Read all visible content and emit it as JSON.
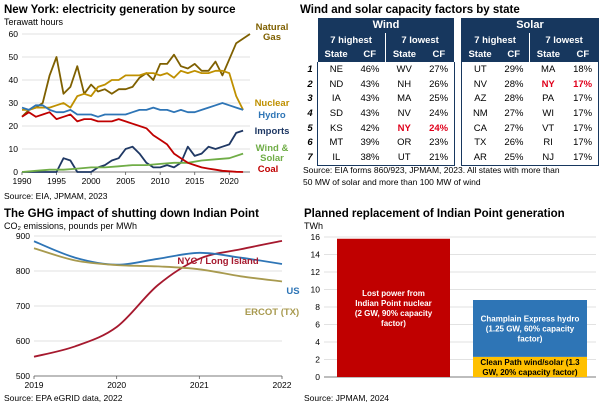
{
  "chart_data": [
    {
      "type": "line",
      "title": "New York: electricity generation by source",
      "ylabel": "Terawatt hours",
      "source": "Source: EIA, JPMAM, 2023",
      "xlim": [
        1990,
        2023
      ],
      "ylim": [
        0,
        60
      ],
      "xticks": [
        1990,
        1995,
        2000,
        2005,
        2010,
        2015,
        2020
      ],
      "yticks": [
        0,
        10,
        20,
        30,
        40,
        50,
        60
      ],
      "grid": true,
      "series": [
        {
          "name": "Natural Gas",
          "color": "#7f6000",
          "x": [
            1990,
            1991,
            1992,
            1993,
            1994,
            1995,
            1996,
            1997,
            1998,
            1999,
            2000,
            2001,
            2002,
            2003,
            2004,
            2005,
            2006,
            2007,
            2008,
            2009,
            2010,
            2011,
            2012,
            2013,
            2014,
            2015,
            2016,
            2017,
            2018,
            2019,
            2020,
            2021,
            2022,
            2023
          ],
          "y": [
            24,
            27,
            28,
            30,
            42,
            50,
            34,
            37,
            46,
            34,
            38,
            35,
            36,
            34,
            36,
            36,
            37,
            41,
            43,
            40,
            47,
            47,
            51,
            46,
            45,
            47,
            44,
            44,
            48,
            42,
            49,
            56,
            58,
            60
          ]
        },
        {
          "name": "Nuclear",
          "color": "#bf9000",
          "x": [
            1990,
            1991,
            1992,
            1993,
            1994,
            1995,
            1996,
            1997,
            1998,
            1999,
            2000,
            2001,
            2002,
            2003,
            2004,
            2005,
            2006,
            2007,
            2008,
            2009,
            2010,
            2011,
            2012,
            2013,
            2014,
            2015,
            2016,
            2017,
            2018,
            2019,
            2020,
            2021,
            2022
          ],
          "y": [
            27,
            27,
            28,
            28,
            28,
            29,
            30,
            28,
            33,
            34,
            33,
            37,
            38,
            40,
            40,
            42,
            42,
            42,
            43,
            43,
            42,
            43,
            41,
            44,
            43,
            44,
            43,
            43,
            44,
            44,
            43,
            33,
            27
          ]
        },
        {
          "name": "Hydro",
          "color": "#2e75b6",
          "x": [
            1990,
            1991,
            1992,
            1993,
            1994,
            1995,
            1996,
            1997,
            1998,
            1999,
            2000,
            2001,
            2002,
            2003,
            2004,
            2005,
            2006,
            2007,
            2008,
            2009,
            2010,
            2011,
            2012,
            2013,
            2014,
            2015,
            2016,
            2017,
            2018,
            2019,
            2020,
            2021,
            2022
          ],
          "y": [
            28,
            27,
            29,
            29,
            27,
            26,
            26,
            27,
            25,
            25,
            25,
            24,
            25,
            25,
            25,
            25,
            26,
            27,
            27,
            28,
            27,
            27,
            26,
            27,
            26,
            26,
            27,
            28,
            29,
            30,
            29,
            28,
            27
          ]
        },
        {
          "name": "Imports",
          "color": "#1f3864",
          "x": [
            1990,
            1991,
            1992,
            1993,
            1994,
            1995,
            1996,
            1997,
            1998,
            1999,
            2000,
            2001,
            2002,
            2003,
            2004,
            2005,
            2006,
            2007,
            2008,
            2009,
            2010,
            2011,
            2012,
            2013,
            2014,
            2015,
            2016,
            2017,
            2018,
            2019,
            2020,
            2021,
            2022
          ],
          "y": [
            0,
            0,
            0,
            0,
            0,
            0,
            6,
            5,
            0,
            0,
            0,
            2,
            3,
            5,
            6,
            10,
            11,
            8,
            4,
            2,
            2,
            3,
            2,
            4,
            11,
            7,
            8,
            11,
            10,
            11,
            12,
            17,
            18
          ]
        },
        {
          "name": "Wind & Solar",
          "color": "#70ad47",
          "x": [
            1990,
            1992,
            1994,
            1996,
            1998,
            2000,
            2002,
            2004,
            2006,
            2008,
            2010,
            2012,
            2014,
            2016,
            2018,
            2020,
            2022
          ],
          "y": [
            0,
            0.5,
            1,
            1,
            1.5,
            2,
            2,
            2.5,
            3,
            3,
            3.5,
            4,
            4,
            5,
            5.5,
            6,
            8
          ]
        },
        {
          "name": "Coal",
          "color": "#c00000",
          "x": [
            1990,
            1991,
            1992,
            1993,
            1994,
            1995,
            1996,
            1997,
            1998,
            1999,
            2000,
            2001,
            2002,
            2003,
            2004,
            2005,
            2006,
            2007,
            2008,
            2009,
            2010,
            2011,
            2012,
            2013,
            2014,
            2015,
            2016,
            2017,
            2018,
            2019,
            2020,
            2021,
            2022
          ],
          "y": [
            24,
            26,
            24,
            25,
            26,
            23,
            24,
            25,
            22,
            23,
            23,
            22,
            22,
            22,
            23,
            22,
            21,
            20,
            19,
            16,
            14,
            12,
            8,
            6,
            4,
            3,
            2,
            1.5,
            1,
            0.5,
            0.3,
            0.1,
            0
          ]
        }
      ]
    },
    {
      "type": "table",
      "title": "Wind and solar capacity factors by state",
      "groups": [
        "Wind",
        "Solar"
      ],
      "subgroups": [
        "7 highest",
        "7 lowest"
      ],
      "columns": [
        "State",
        "CF"
      ],
      "ranks": [
        "1",
        "2",
        "3",
        "4",
        "5",
        "6",
        "7"
      ],
      "rows": [
        [
          "NE",
          "46%",
          "WV",
          "27%",
          "UT",
          "29%",
          "MA",
          "18%"
        ],
        [
          "ND",
          "43%",
          "NH",
          "26%",
          "NV",
          "28%",
          "NY",
          "17%"
        ],
        [
          "IA",
          "43%",
          "MA",
          "25%",
          "AZ",
          "28%",
          "PA",
          "17%"
        ],
        [
          "SD",
          "43%",
          "NV",
          "24%",
          "NM",
          "27%",
          "WI",
          "17%"
        ],
        [
          "KS",
          "42%",
          "NY",
          "24%",
          "CA",
          "27%",
          "VT",
          "17%"
        ],
        [
          "MT",
          "39%",
          "OR",
          "23%",
          "TX",
          "26%",
          "RI",
          "17%"
        ],
        [
          "IL",
          "38%",
          "UT",
          "21%",
          "AR",
          "25%",
          "NJ",
          "17%"
        ]
      ],
      "highlight_color": "#e0001b",
      "source_lines": [
        "Source: EIA forms 860/923, JPMAM, 2023. All states with more than",
        "50 MW of solar and more than 100 MW of wind"
      ]
    },
    {
      "type": "line",
      "title": "The GHG impact of shutting down Indian Point",
      "ylabel": "CO₂ emissions, pounds per MWh",
      "source": "Source: EPA eGRID data, 2022",
      "xlim": [
        2019,
        2022
      ],
      "ylim": [
        500,
        900
      ],
      "xticks": [
        2019,
        2020,
        2021,
        2022
      ],
      "yticks": [
        500,
        600,
        700,
        800,
        900
      ],
      "grid": true,
      "series": [
        {
          "name": "NYC / Long Island",
          "color": "#a6192e",
          "x": [
            2019,
            2019.5,
            2020,
            2020.5,
            2021,
            2021.5,
            2022
          ],
          "y": [
            555,
            585,
            640,
            760,
            835,
            862,
            886
          ]
        },
        {
          "name": "US",
          "color": "#2e75b6",
          "x": [
            2019,
            2019.5,
            2020,
            2020.5,
            2021,
            2021.5,
            2022
          ],
          "y": [
            885,
            838,
            818,
            835,
            852,
            838,
            820
          ]
        },
        {
          "name": "ERCOT (TX)",
          "color": "#a89a4f",
          "x": [
            2019,
            2019.5,
            2020,
            2020.5,
            2021,
            2021.5,
            2022
          ],
          "y": [
            865,
            830,
            817,
            813,
            805,
            785,
            770
          ]
        }
      ]
    },
    {
      "type": "bar",
      "title": "Planned replacement of Indian Point generation",
      "ylabel": "TWh",
      "source": "Source: JPMAM, 2024",
      "ylim": [
        0,
        16
      ],
      "yticks": [
        0,
        2,
        4,
        6,
        8,
        10,
        12,
        14,
        16
      ],
      "grid": true,
      "bars": [
        {
          "label_lines": [
            "Lost power from",
            "Indian Point nuclear",
            "(2 GW, 90% capacity",
            "factor)"
          ],
          "segments": [
            {
              "value": 15.8,
              "color": "#c00000",
              "text_color": "#ffffff"
            }
          ]
        },
        {
          "label_lines": [],
          "segments": [
            {
              "value": 2.3,
              "color": "#ffc000",
              "text_color": "#000000",
              "label_lines": [
                "Clean Path wind/solar (1.3",
                "GW, 20% capacity factor)"
              ]
            },
            {
              "value": 6.5,
              "color": "#2e75b6",
              "text_color": "#ffffff",
              "label_lines": [
                "Champlain Express hydro",
                "(1.25 GW, 60% capacity",
                "factor)"
              ]
            }
          ]
        }
      ]
    }
  ]
}
